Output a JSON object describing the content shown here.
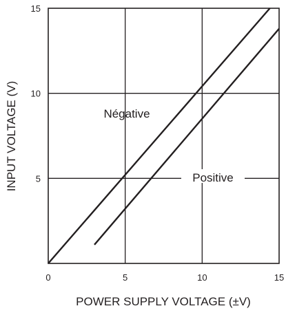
{
  "chart_data": {
    "type": "line",
    "title": "",
    "xlabel": "POWER SUPPLY VOLTAGE (±V)",
    "ylabel": "INPUT VOLTAGE (V)",
    "xlim": [
      0,
      15
    ],
    "ylim": [
      0,
      15
    ],
    "xticks": [
      0,
      5,
      10,
      15
    ],
    "yticks": [
      5,
      10,
      15
    ],
    "grid": true,
    "legend": "none",
    "colors": {
      "line": "#231f20",
      "grid": "#231f20",
      "background": "#ffffff"
    },
    "series": [
      {
        "name": "Negative",
        "label_text": "Négative",
        "x": [
          0,
          14.4
        ],
        "y": [
          0,
          15
        ]
      },
      {
        "name": "Positive",
        "label_text": "Positive",
        "x": [
          3,
          15
        ],
        "y": [
          1.1,
          13.8
        ]
      }
    ]
  }
}
